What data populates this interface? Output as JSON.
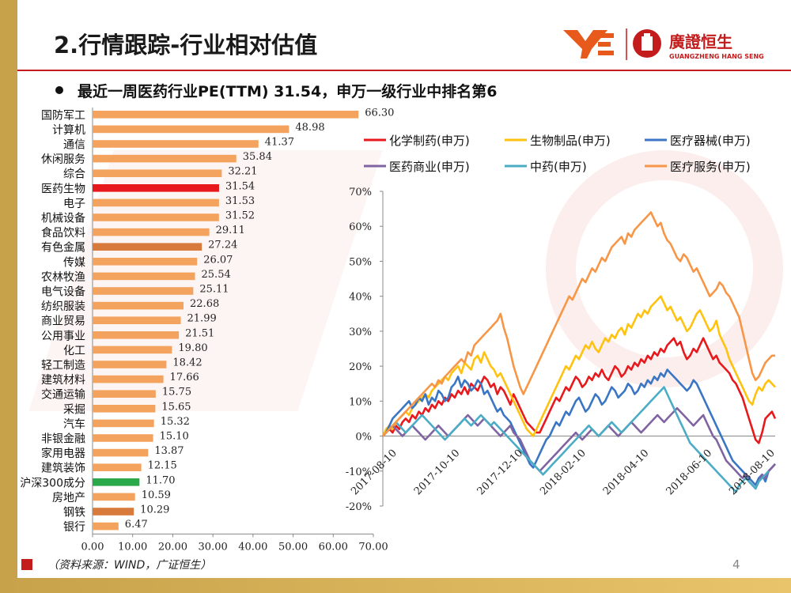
{
  "page": {
    "title": "2.行情跟踪-行业相对估值",
    "subtitle": "最近一周医药行业PE(TTM) 31.54，申万一级行业中排名第6",
    "source": "（资料来源：WIND，广证恒生）",
    "page_number": "4",
    "logo_text_cn": "廣證恒生",
    "logo_text_en": "GUANGZHENG HANG SENG",
    "colors": {
      "accent": "#c41c1c",
      "gold": "#c8a24a"
    }
  },
  "chart_data": [
    {
      "type": "bar",
      "orientation": "horizontal",
      "title": "",
      "xlabel": "",
      "ylabel": "",
      "xlim": [
        0,
        70
      ],
      "xticks": [
        "0.00",
        "10.00",
        "20.00",
        "30.00",
        "40.00",
        "50.00",
        "60.00",
        "70.00"
      ],
      "categories": [
        "国防军工",
        "计算机",
        "通信",
        "休闲服务",
        "综合",
        "医药生物",
        "电子",
        "机械设备",
        "食品饮料",
        "有色金属",
        "传媒",
        "农林牧渔",
        "电气设备",
        "纺织服装",
        "商业贸易",
        "公用事业",
        "化工",
        "轻工制造",
        "建筑材料",
        "交通运输",
        "采掘",
        "汽车",
        "非银金融",
        "家用电器",
        "建筑装饰",
        "沪深300成分",
        "房地产",
        "钢铁",
        "银行"
      ],
      "values": [
        66.3,
        48.98,
        41.37,
        35.84,
        32.21,
        31.54,
        31.53,
        31.52,
        29.11,
        27.24,
        26.07,
        25.54,
        25.11,
        22.68,
        21.99,
        21.51,
        19.8,
        18.42,
        17.66,
        15.75,
        15.65,
        15.32,
        15.1,
        13.87,
        12.15,
        11.7,
        10.59,
        10.29,
        6.47
      ],
      "value_labels": [
        "66.30",
        "48.98",
        "41.37",
        "35.84",
        "32.21",
        "31.54",
        "31.53",
        "31.52",
        "29.11",
        "27.24",
        "26.07",
        "25.54",
        "25.11",
        "22.68",
        "21.99",
        "21.51",
        "19.80",
        "18.42",
        "17.66",
        "15.75",
        "15.65",
        "15.32",
        "15.10",
        "13.87",
        "12.15",
        "11.70",
        "10.59",
        "10.29",
        "6.47"
      ],
      "bar_colors": [
        "#f4a35e",
        "#f4a35e",
        "#f4a35e",
        "#f4a35e",
        "#f4a35e",
        "#e8191c",
        "#f4a35e",
        "#f4a35e",
        "#f4a35e",
        "#d87a3c",
        "#f4a35e",
        "#f4a35e",
        "#f4a35e",
        "#f4a35e",
        "#f4a35e",
        "#f4a35e",
        "#f4a35e",
        "#f4a35e",
        "#f4a35e",
        "#f4a35e",
        "#f4a35e",
        "#f4a35e",
        "#f4a35e",
        "#f4a35e",
        "#f4a35e",
        "#2aa84a",
        "#f4a35e",
        "#d87a3c",
        "#f4a35e"
      ]
    },
    {
      "type": "line",
      "title": "",
      "xlabel": "",
      "ylabel": "",
      "ylim": [
        -20,
        70
      ],
      "yticks": [
        "-20%",
        "-10%",
        "0%",
        "10%",
        "20%",
        "30%",
        "40%",
        "50%",
        "60%",
        "70%"
      ],
      "xticks": [
        "2017-08-10",
        "2017-10-10",
        "2017-12-10",
        "2018-02-10",
        "2018-04-10",
        "2018-06-10",
        "2018-08-10"
      ],
      "x_index": [
        0,
        4,
        8,
        12,
        16,
        20,
        24,
        28,
        32,
        36,
        40,
        44,
        48,
        52,
        56,
        60,
        64,
        68,
        72,
        76,
        80,
        84,
        88,
        92,
        96,
        100,
        104,
        108,
        112,
        116,
        120,
        124,
        128,
        132,
        136,
        140,
        144,
        148,
        152,
        156,
        160,
        164,
        168,
        172,
        176,
        180,
        184,
        188,
        192,
        196,
        200,
        204,
        208,
        212,
        216,
        220,
        224,
        228,
        232,
        236,
        240,
        244,
        248,
        252,
        256,
        260,
        264,
        268,
        272,
        276,
        280,
        284,
        288,
        292,
        296,
        300,
        304,
        308,
        312,
        316,
        320,
        324,
        328,
        332,
        336,
        340,
        344,
        348,
        352,
        356,
        360,
        364,
        368,
        372,
        376,
        380,
        384,
        388,
        392,
        396,
        400,
        404,
        408,
        412,
        416,
        420,
        424,
        428,
        432,
        436,
        440,
        444,
        448,
        452,
        456,
        460,
        464,
        468,
        472,
        476,
        480
      ],
      "series": [
        {
          "name": "化学制药(申万)",
          "color": "#e8191c",
          "values": [
            0,
            1,
            2,
            1,
            3,
            2,
            4,
            5,
            4,
            6,
            5,
            7,
            6,
            8,
            7,
            9,
            8,
            10,
            9,
            11,
            10,
            12,
            11,
            13,
            12,
            14,
            12,
            15,
            14,
            13,
            15,
            17,
            16,
            14,
            15,
            12,
            14,
            13,
            11,
            9,
            12,
            10,
            8,
            6,
            4,
            3,
            2,
            1,
            1,
            3,
            5,
            7,
            9,
            11,
            10,
            12,
            14,
            13,
            15,
            17,
            16,
            14,
            15,
            17,
            16,
            18,
            17,
            19,
            17,
            16,
            18,
            20,
            19,
            17,
            18,
            20,
            19,
            21,
            20,
            22,
            21,
            23,
            22,
            24,
            23,
            25,
            24,
            26,
            27,
            28,
            26,
            27,
            24,
            22,
            23,
            25,
            24,
            26,
            28,
            26,
            24,
            22,
            23,
            21,
            20,
            19,
            18,
            16,
            15,
            13,
            11,
            8,
            5,
            2,
            -1,
            -2,
            1,
            5,
            6,
            7,
            5
          ]
        },
        {
          "name": "生物制品(申万)",
          "color": "#ffc20e",
          "values": [
            0,
            2,
            3,
            2,
            4,
            5,
            6,
            7,
            6,
            8,
            9,
            10,
            11,
            12,
            11,
            13,
            14,
            15,
            16,
            17,
            16,
            18,
            19,
            20,
            18,
            21,
            20,
            19,
            22,
            23,
            21,
            24,
            22,
            20,
            19,
            17,
            18,
            16,
            14,
            12,
            10,
            8,
            6,
            4,
            2,
            1,
            0,
            2,
            4,
            6,
            8,
            10,
            12,
            14,
            16,
            18,
            20,
            19,
            21,
            23,
            22,
            24,
            26,
            25,
            27,
            25,
            24,
            26,
            28,
            27,
            29,
            28,
            30,
            31,
            29,
            32,
            31,
            33,
            35,
            34,
            36,
            35,
            37,
            38,
            39,
            40,
            38,
            36,
            37,
            35,
            33,
            34,
            32,
            30,
            31,
            33,
            35,
            36,
            34,
            32,
            30,
            31,
            33,
            29,
            27,
            25,
            22,
            20,
            18,
            16,
            14,
            12,
            10,
            9,
            12,
            14,
            13,
            15,
            16,
            15,
            14
          ]
        },
        {
          "name": "医疗器械(申万)",
          "color": "#3a76c4",
          "values": [
            0,
            1,
            3,
            5,
            6,
            7,
            8,
            9,
            10,
            8,
            9,
            11,
            10,
            12,
            9,
            11,
            10,
            13,
            12,
            10,
            11,
            14,
            15,
            17,
            14,
            16,
            15,
            13,
            14,
            16,
            15,
            12,
            13,
            11,
            9,
            7,
            8,
            6,
            5,
            4,
            2,
            0,
            -2,
            -4,
            -6,
            -8,
            -9,
            -7,
            -5,
            -3,
            -1,
            0,
            2,
            4,
            3,
            5,
            7,
            6,
            8,
            10,
            11,
            9,
            7,
            8,
            10,
            12,
            11,
            9,
            10,
            12,
            14,
            13,
            11,
            12,
            13,
            15,
            14,
            12,
            13,
            15,
            14,
            16,
            15,
            17,
            16,
            18,
            17,
            19,
            18,
            17,
            16,
            15,
            14,
            13,
            14,
            16,
            15,
            13,
            11,
            9,
            7,
            5,
            3,
            1,
            -1,
            -3,
            -5,
            -7,
            -8,
            -9,
            -10,
            -11,
            -12,
            -13,
            -14,
            -12,
            -11,
            -13,
            -10,
            -9,
            -8
          ]
        },
        {
          "name": "医药商业(申万)",
          "color": "#8064a2",
          "values": [
            0,
            1,
            2,
            3,
            2,
            1,
            0,
            1,
            2,
            3,
            2,
            1,
            0,
            -1,
            0,
            1,
            2,
            3,
            2,
            1,
            0,
            1,
            2,
            3,
            4,
            5,
            6,
            5,
            4,
            3,
            4,
            5,
            4,
            3,
            2,
            1,
            0,
            1,
            2,
            3,
            1,
            0,
            -1,
            -3,
            -5,
            -7,
            -8,
            -9,
            -10,
            -9,
            -8,
            -7,
            -6,
            -5,
            -4,
            -3,
            -2,
            -1,
            0,
            1,
            0,
            -1,
            0,
            1,
            2,
            1,
            0,
            1,
            2,
            3,
            2,
            1,
            0,
            1,
            2,
            3,
            4,
            3,
            2,
            1,
            2,
            3,
            4,
            5,
            6,
            5,
            4,
            5,
            6,
            7,
            8,
            7,
            6,
            5,
            4,
            3,
            4,
            5,
            6,
            4,
            2,
            0,
            -1,
            -3,
            -5,
            -7,
            -8,
            -9,
            -10,
            -11,
            -12,
            -11,
            -13,
            -14,
            -15,
            -13,
            -11,
            -12,
            -10,
            -9,
            -8
          ]
        },
        {
          "name": "中药(申万)",
          "color": "#4bacc6",
          "values": [
            0,
            1,
            2,
            3,
            4,
            3,
            2,
            1,
            2,
            3,
            4,
            5,
            6,
            5,
            4,
            3,
            2,
            1,
            0,
            -1,
            0,
            1,
            2,
            3,
            4,
            5,
            4,
            3,
            4,
            5,
            6,
            5,
            4,
            3,
            4,
            3,
            2,
            1,
            0,
            -1,
            -2,
            -3,
            -4,
            -5,
            -6,
            -7,
            -8,
            -9,
            -10,
            -11,
            -10,
            -9,
            -8,
            -7,
            -6,
            -5,
            -4,
            -3,
            -2,
            -1,
            0,
            1,
            2,
            3,
            2,
            1,
            0,
            1,
            2,
            3,
            4,
            3,
            2,
            1,
            2,
            3,
            4,
            5,
            6,
            7,
            8,
            9,
            10,
            11,
            12,
            13,
            14,
            12,
            10,
            8,
            6,
            4,
            2,
            0,
            -2,
            -3,
            -4,
            -5,
            -6,
            -7,
            -8,
            -9,
            -10,
            -11,
            -12,
            -13,
            -14,
            -15,
            -16,
            -14,
            -13,
            -12,
            -13,
            -14,
            -15,
            -13,
            -12,
            -11,
            -10
          ]
        },
        {
          "name": "医疗服务(申万)",
          "color": "#f79646",
          "values": [
            0,
            1,
            2,
            3,
            4,
            5,
            6,
            7,
            8,
            9,
            10,
            11,
            12,
            13,
            14,
            15,
            14,
            16,
            15,
            17,
            18,
            19,
            20,
            21,
            22,
            21,
            24,
            23,
            26,
            27,
            28,
            29,
            30,
            31,
            32,
            33,
            35,
            31,
            28,
            24,
            20,
            17,
            14,
            12,
            14,
            16,
            18,
            20,
            22,
            24,
            26,
            28,
            30,
            32,
            34,
            36,
            38,
            40,
            39,
            41,
            43,
            45,
            44,
            46,
            48,
            47,
            49,
            51,
            50,
            52,
            54,
            55,
            56,
            57,
            55,
            58,
            57,
            59,
            60,
            61,
            62,
            63,
            64,
            62,
            60,
            61,
            58,
            56,
            55,
            53,
            51,
            50,
            52,
            51,
            49,
            47,
            48,
            46,
            44,
            42,
            40,
            41,
            42,
            44,
            43,
            41,
            40,
            38,
            36,
            34,
            30,
            26,
            22,
            18,
            16,
            17,
            19,
            21,
            22,
            23,
            23
          ]
        }
      ],
      "legend_position": "top"
    }
  ]
}
